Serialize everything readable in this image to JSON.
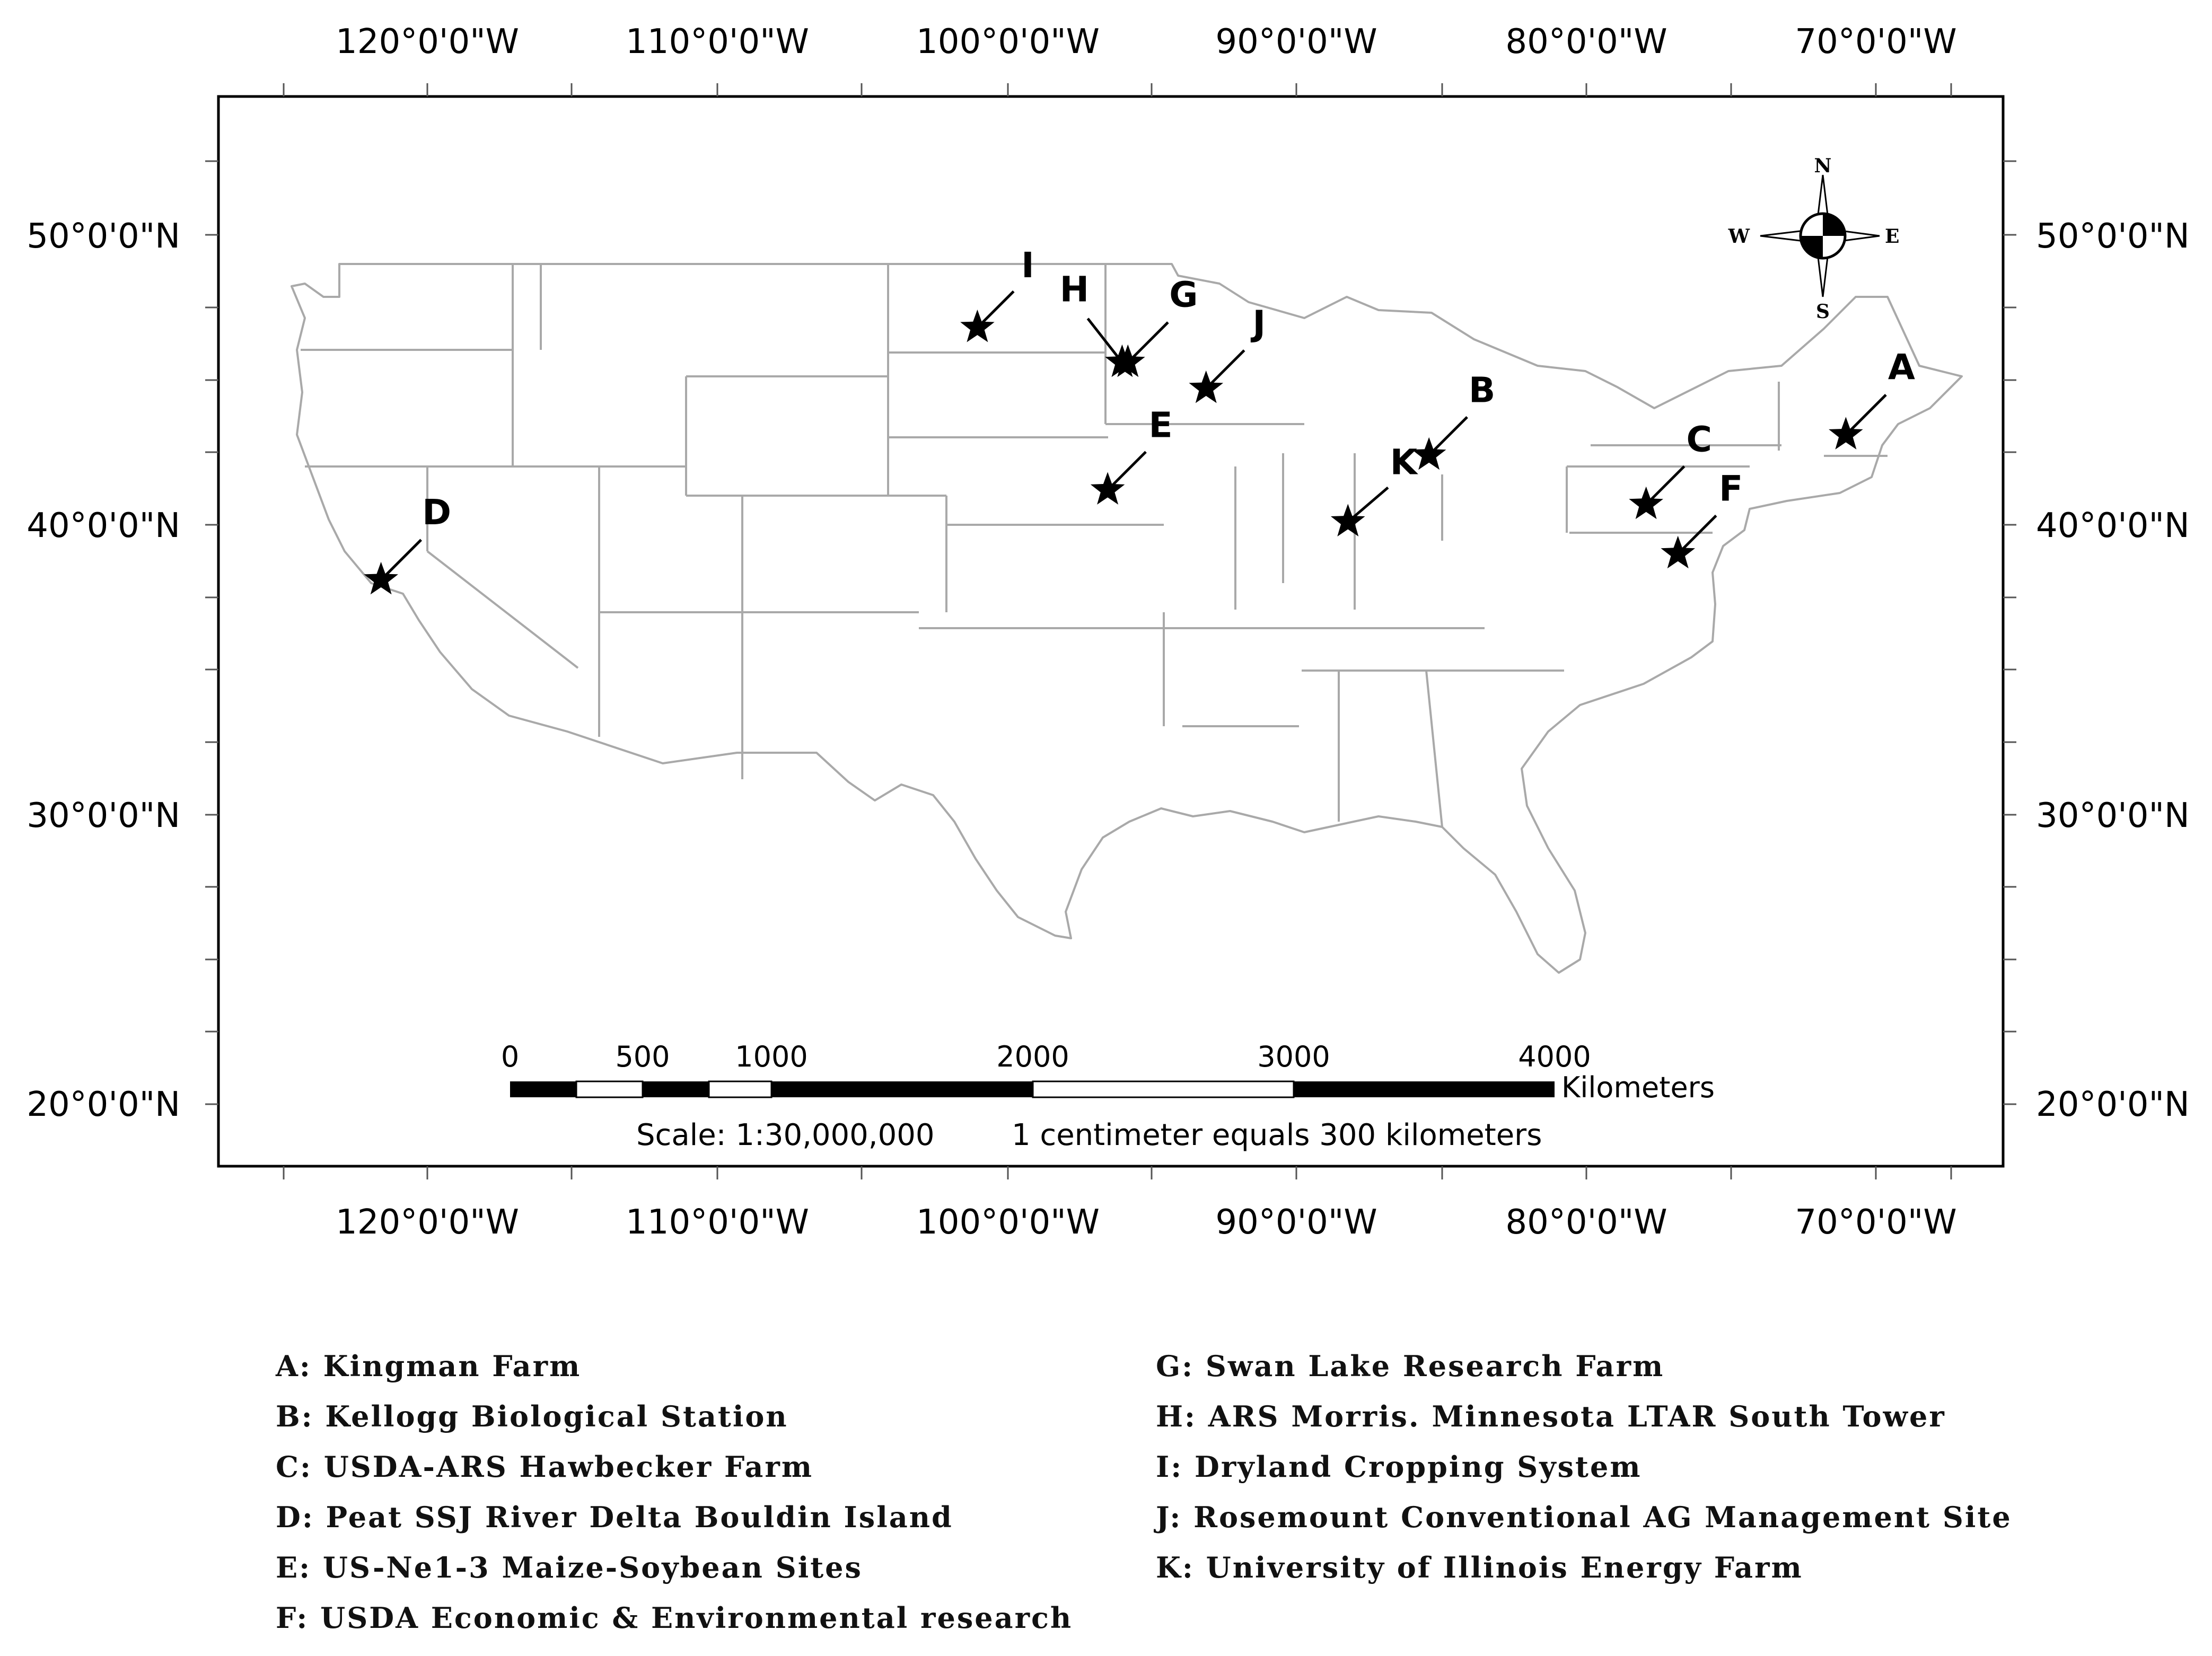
{
  "map": {
    "top_lon_labels": [
      "120°0'0\"W",
      "110°0'0\"W",
      "100°0'0\"W",
      "90°0'0\"W",
      "80°0'0\"W",
      "70°0'0\"W"
    ],
    "bottom_lon_labels": [
      "120°0'0\"W",
      "110°0'0\"W",
      "100°0'0\"W",
      "90°0'0\"W",
      "80°0'0\"W",
      "70°0'0\"W"
    ],
    "left_lat_labels": [
      "50°0'0\"N",
      "40°0'0\"N",
      "30°0'0\"N",
      "20°0'0\"N"
    ],
    "right_lat_labels": [
      "50°0'0\"N",
      "40°0'0\"N",
      "30°0'0\"N",
      "20°0'0\"N"
    ],
    "compass": {
      "n": "N",
      "s": "S",
      "e": "E",
      "w": "W"
    },
    "colors": {
      "state_borders": "#a9a9a9",
      "frame": "#000000",
      "markers": "#000000"
    },
    "sites": [
      {
        "letter": "A",
        "lon": -71.0,
        "lat": 43.1
      },
      {
        "letter": "B",
        "lon": -85.4,
        "lat": 42.4
      },
      {
        "letter": "C",
        "lon": -77.9,
        "lat": 40.7
      },
      {
        "letter": "D",
        "lon": -121.6,
        "lat": 38.1
      },
      {
        "letter": "E",
        "lon": -96.5,
        "lat": 41.2
      },
      {
        "letter": "F",
        "lon": -76.8,
        "lat": 39.0
      },
      {
        "letter": "G",
        "lon": -95.8,
        "lat": 45.6
      },
      {
        "letter": "H",
        "lon": -96.0,
        "lat": 45.6
      },
      {
        "letter": "I",
        "lon": -101.0,
        "lat": 46.8
      },
      {
        "letter": "J",
        "lon": -93.1,
        "lat": 44.7
      },
      {
        "letter": "K",
        "lon": -88.2,
        "lat": 40.1
      }
    ]
  },
  "scale_bar": {
    "ticks": [
      "0",
      "500",
      "1000",
      "2000",
      "3000",
      "4000"
    ],
    "unit": "Kilometers",
    "scale_text": "Scale: 1:30,000,000",
    "equivalence_text": "1 centimeter equals 300 kilometers"
  },
  "legend": {
    "left": [
      "A: Kingman Farm",
      "B: Kellogg Biological Station",
      "C: USDA-ARS Hawbecker Farm",
      "D: Peat SSJ River Delta Bouldin Island",
      "E: US-Ne1-3 Maize-Soybean Sites",
      "F: USDA Economic & Environmental research"
    ],
    "right": [
      "G: Swan Lake Research Farm",
      "H: ARS Morris. Minnesota LTAR South Tower",
      "I: Dryland Cropping System",
      "J: Rosemount Conventional AG Management Site",
      "K: University of Illinois Energy Farm"
    ]
  }
}
